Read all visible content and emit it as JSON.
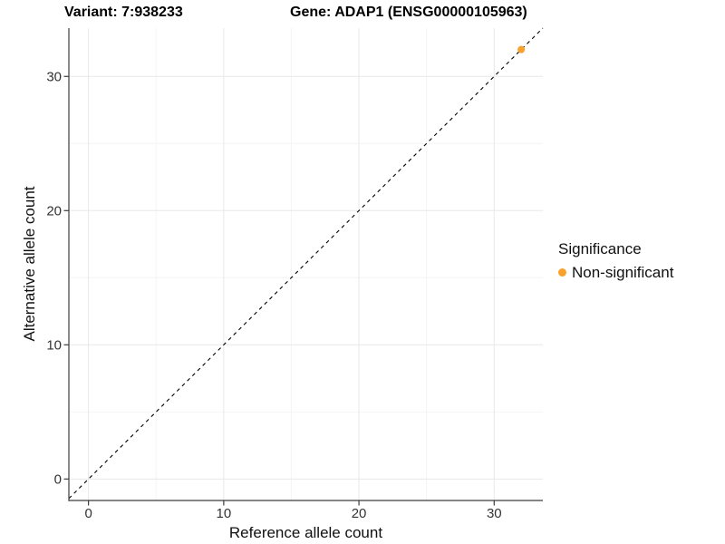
{
  "header": {
    "variant_title": "Variant: 7:938233",
    "gene_title": "Gene: ADAP1 (ENSG00000105963)"
  },
  "chart_data": {
    "type": "scatter",
    "xlabel": "Reference allele count",
    "ylabel": "Alternative allele count",
    "xlim": [
      -1.45,
      33.6
    ],
    "ylim": [
      -1.6,
      33.6
    ],
    "xticks": [
      0,
      10,
      20,
      30
    ],
    "yticks": [
      0,
      10,
      20,
      30
    ],
    "x_minor_ticks": [
      5,
      15,
      25
    ],
    "y_minor_ticks": [
      5,
      15,
      25
    ],
    "grid": "major and minor gridlines on white panel",
    "legend_position": "right",
    "reference_line": {
      "kind": "identity y=x",
      "style": "dashed",
      "color": "#000000"
    },
    "series": [
      {
        "name": "Non-significant",
        "color": "#F9A12B",
        "points": [
          {
            "x": 32,
            "y": 32
          }
        ]
      }
    ],
    "legend": {
      "title": "Significance",
      "entries": [
        {
          "label": "Non-significant",
          "color": "#F9A12B"
        }
      ]
    },
    "style": {
      "grid_major_color": "#E8E8E8",
      "grid_minor_color": "#F4F4F4",
      "axis_color": "#3C3C3C",
      "tick_label_color": "#333333",
      "text_color": "#000000",
      "background": "#FFFFFF",
      "point_radius": 4
    }
  }
}
